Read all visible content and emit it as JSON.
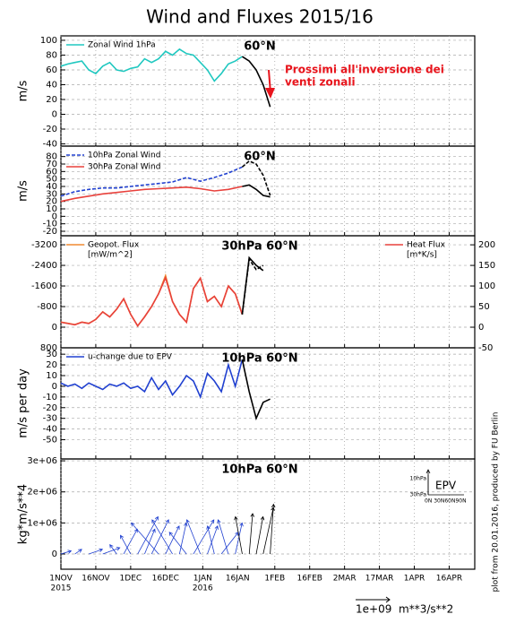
{
  "title": "Wind and Fluxes 2015/16",
  "footer": "plot from 20.01.2016, produced by FU Berlin",
  "chart_data": [
    {
      "type": "line",
      "label": "60°N",
      "ylabel": "m/s",
      "grid": true,
      "annotation": [
        "Prossimi all'inversione dei",
        "venti zonali"
      ],
      "annotation_color": "#e8141c",
      "xlim": [
        0,
        178
      ],
      "xticks": [
        0,
        15,
        30,
        45,
        61,
        76,
        92,
        107,
        122,
        137,
        152,
        167
      ],
      "ylim": [
        -43,
        106
      ],
      "yticks": [
        -40,
        -20,
        0,
        20,
        40,
        60,
        80,
        100
      ],
      "series": [
        {
          "name": "Zonal Wind 1hPa",
          "color": "#20c8c0",
          "dashed": false,
          "x": [
            0,
            3,
            6,
            9,
            12,
            15,
            18,
            21,
            24,
            27,
            30,
            33,
            36,
            39,
            42,
            45,
            48,
            51,
            54,
            57,
            60,
            63,
            66,
            69,
            72,
            75,
            78
          ],
          "values": [
            65,
            68,
            70,
            72,
            60,
            55,
            65,
            70,
            60,
            58,
            62,
            64,
            75,
            70,
            75,
            85,
            80,
            88,
            82,
            80,
            70,
            60,
            45,
            55,
            68,
            72,
            78
          ]
        },
        {
          "color": "#000000",
          "dashed": false,
          "x": [
            78,
            81,
            84,
            87,
            90
          ],
          "values": [
            78,
            72,
            60,
            40,
            10
          ]
        }
      ]
    },
    {
      "type": "line",
      "label": "60°N",
      "ylabel": "m/s",
      "grid": true,
      "xlim": [
        0,
        178
      ],
      "xticks": [
        0,
        15,
        30,
        45,
        61,
        76,
        92,
        107,
        122,
        137,
        152,
        167
      ],
      "ylim": [
        -26,
        94
      ],
      "yticks": [
        -20,
        -10,
        0,
        10,
        20,
        30,
        40,
        50,
        60,
        70,
        80
      ],
      "series": [
        {
          "name": "10hPa Zonal Wind",
          "color": "#2040d0",
          "dashed": true,
          "x": [
            0,
            6,
            12,
            18,
            24,
            30,
            36,
            42,
            48,
            54,
            60,
            66,
            72,
            78
          ],
          "values": [
            27,
            33,
            36,
            38,
            38,
            40,
            42,
            44,
            46,
            52,
            47,
            52,
            58,
            66
          ]
        },
        {
          "name": "30hPa Zonal Wind",
          "color": "#e8413c",
          "dashed": false,
          "x": [
            0,
            6,
            12,
            18,
            24,
            30,
            36,
            42,
            48,
            54,
            60,
            66,
            72,
            78
          ],
          "values": [
            20,
            24,
            27,
            30,
            32,
            34,
            36,
            37,
            38,
            39,
            37,
            34,
            36,
            40
          ]
        },
        {
          "color": "#000000",
          "dashed": true,
          "x": [
            78,
            81,
            84,
            87,
            90
          ],
          "values": [
            66,
            74,
            70,
            55,
            28
          ]
        },
        {
          "color": "#000000",
          "dashed": false,
          "x": [
            78,
            81,
            84,
            87,
            90
          ],
          "values": [
            40,
            42,
            36,
            28,
            26
          ]
        }
      ]
    },
    {
      "type": "line",
      "label": "30hPa 60°N",
      "grid": true,
      "xlim": [
        0,
        178
      ],
      "xticks": [
        0,
        15,
        30,
        45,
        61,
        76,
        92,
        107,
        122,
        137,
        152,
        167
      ],
      "ylim": [
        800,
        -3550
      ],
      "yticks": [
        800,
        0,
        -800,
        -1600,
        -2400,
        -3200
      ],
      "y2lim": [
        -50,
        222
      ],
      "y2ticks": [
        -50,
        0,
        50,
        100,
        150,
        200
      ],
      "series": [
        {
          "name": "Geopot. Flux",
          "legend_sub": "[mW/m^2]",
          "legend": "left",
          "color": "#f08a30",
          "dashed": false,
          "x": [
            0,
            3,
            6,
            9,
            12,
            15,
            18,
            21,
            24,
            27,
            30,
            33,
            36,
            39,
            42,
            45,
            48,
            51,
            54,
            57,
            60,
            63,
            66,
            69,
            72,
            75,
            78
          ],
          "values": [
            -200,
            -150,
            -100,
            -200,
            -150,
            -300,
            -600,
            -400,
            -700,
            -1100,
            -500,
            -50,
            -400,
            -800,
            -1300,
            -2000,
            -1000,
            -500,
            -200,
            -1500,
            -1900,
            -1000,
            -1200,
            -800,
            -1600,
            -1300,
            -500
          ]
        },
        {
          "name": "Heat Flux",
          "legend_sub": "[m*K/s]",
          "legend": "right",
          "axis": "y2",
          "color": "#e8413c",
          "dashed": false,
          "x": [
            0,
            3,
            6,
            9,
            12,
            15,
            18,
            21,
            24,
            27,
            30,
            33,
            36,
            39,
            42,
            45,
            48,
            51,
            54,
            57,
            60,
            63,
            66,
            69,
            72,
            75,
            78
          ],
          "values": [
            12,
            9,
            6,
            12,
            9,
            19,
            37,
            25,
            44,
            69,
            31,
            3,
            25,
            50,
            81,
            120,
            62,
            31,
            12,
            94,
            119,
            62,
            75,
            50,
            100,
            81,
            31
          ]
        },
        {
          "color": "#000000",
          "dashed": false,
          "x": [
            78,
            81,
            84,
            87
          ],
          "values": [
            -500,
            -2700,
            -2400,
            -2200
          ]
        },
        {
          "color": "#000000",
          "dashed": true,
          "axis": "y2",
          "x": [
            78,
            81,
            84,
            87
          ],
          "values": [
            31,
            165,
            140,
            150
          ]
        }
      ]
    },
    {
      "type": "line",
      "label": "10hPa 60°N",
      "ylabel": "m/s per day",
      "grid": true,
      "xlim": [
        0,
        178
      ],
      "xticks": [
        0,
        15,
        30,
        45,
        61,
        76,
        92,
        107,
        122,
        137,
        152,
        167
      ],
      "ylim": [
        -68,
        36
      ],
      "yticks": [
        -50,
        -40,
        -30,
        -20,
        -10,
        0,
        10,
        20,
        30
      ],
      "series": [
        {
          "name": "u-change due to EPV",
          "color": "#2040d0",
          "dashed": false,
          "x": [
            0,
            3,
            6,
            9,
            12,
            15,
            18,
            21,
            24,
            27,
            30,
            33,
            36,
            39,
            42,
            45,
            48,
            51,
            54,
            57,
            60,
            63,
            66,
            69,
            72,
            75,
            78
          ],
          "values": [
            3,
            0,
            2,
            -2,
            3,
            0,
            -3,
            2,
            0,
            3,
            -2,
            0,
            -5,
            8,
            -3,
            5,
            -8,
            0,
            10,
            5,
            -10,
            12,
            5,
            -5,
            20,
            0,
            25
          ]
        },
        {
          "color": "#000000",
          "dashed": false,
          "x": [
            78,
            81,
            84,
            87,
            90
          ],
          "values": [
            25,
            -5,
            -30,
            -15,
            -12
          ]
        }
      ]
    },
    {
      "type": "quiver",
      "label": "10hPa 60°N",
      "ylabel": "kg*m/s**4",
      "grid": true,
      "xlim": [
        0,
        178
      ],
      "xticks": [
        {
          "value": 0,
          "label": "1NOV"
        },
        {
          "value": 15,
          "label": "16NOV"
        },
        {
          "value": 30,
          "label": "1DEC"
        },
        {
          "value": 45,
          "label": "16DEC"
        },
        {
          "value": 61,
          "label": "1JAN"
        },
        {
          "value": 76,
          "label": "16JAN"
        },
        {
          "value": 92,
          "label": "1FEB"
        },
        {
          "value": 107,
          "label": "16FEB"
        },
        {
          "value": 122,
          "label": "2MAR"
        },
        {
          "value": 137,
          "label": "17MAR"
        },
        {
          "value": 152,
          "label": "1APR"
        },
        {
          "value": 167,
          "label": "16APR"
        }
      ],
      "year_labels": [
        {
          "value": 0,
          "label": "2015"
        },
        {
          "value": 61,
          "label": "2016"
        }
      ],
      "ylim": [
        -490000,
        3060000
      ],
      "yticks": [
        0,
        {
          "value": 1000000,
          "label": "1e+06"
        },
        {
          "value": 2000000,
          "label": "2e+06"
        },
        {
          "value": 3000000,
          "label": "3e+06"
        }
      ],
      "reference_arrow": {
        "value": 1000000000,
        "label": "1e+09"
      },
      "reference_unit": "m**3/s**2",
      "inset": {
        "title": "EPV",
        "ylabels": [
          "10hPa",
          "30hPa"
        ],
        "xlabel": "0N 30N60N90N"
      },
      "series": [
        {
          "color": "#2040d0",
          "x": [
            0,
            6,
            12,
            18,
            24,
            27,
            30,
            33,
            36,
            39,
            42,
            45,
            48,
            51,
            54,
            57,
            60,
            63,
            66,
            69,
            72,
            75
          ],
          "u": [
            300000000,
            200000000,
            400000000,
            500000000,
            -200000000,
            400000000,
            -300000000,
            600000000,
            300000000,
            500000000,
            -800000000,
            400000000,
            -600000000,
            200000000,
            -500000000,
            600000000,
            -400000000,
            300000000,
            -200000000,
            500000000,
            -300000000,
            200000000
          ],
          "values": [
            100000,
            150000,
            150000,
            200000,
            300000,
            800000,
            600000,
            1200000,
            800000,
            1100000,
            1000000,
            900000,
            1100000,
            1000000,
            700000,
            1100000,
            1100000,
            900000,
            900000,
            700000,
            1100000,
            1000000
          ]
        },
        {
          "color": "#000000",
          "x": [
            78,
            81,
            84,
            87,
            90
          ],
          "u": [
            -200000000,
            100000000,
            200000000,
            300000000,
            100000000
          ],
          "values": [
            1200000,
            1300000,
            1200000,
            1500000,
            1600000
          ]
        }
      ]
    }
  ]
}
